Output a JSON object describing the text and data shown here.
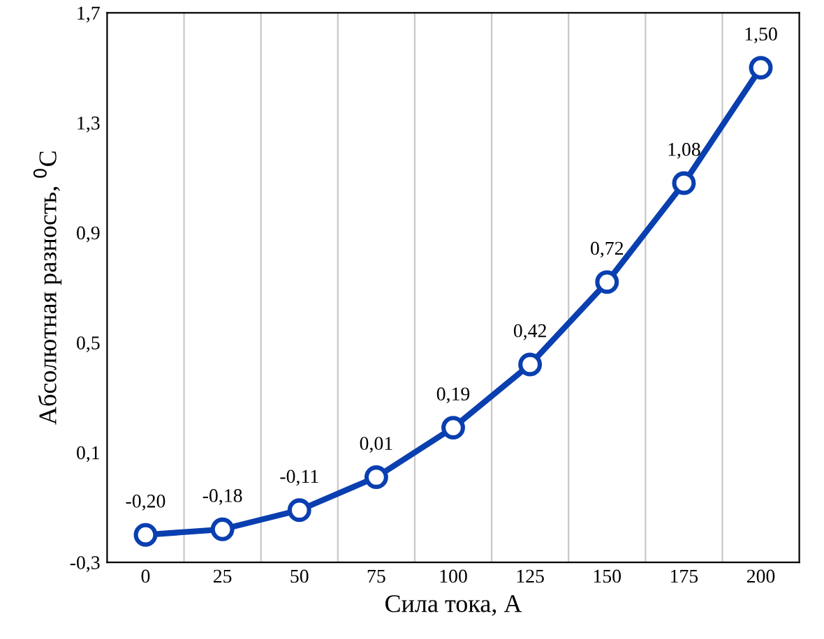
{
  "chart_data": {
    "type": "line",
    "xlabel": "Сила тока, А",
    "ylabel": "Абсолютная разность, $^{0}$C",
    "categories": [
      "0",
      "25",
      "50",
      "75",
      "100",
      "125",
      "150",
      "175",
      "200"
    ],
    "series": [
      {
        "color": "#0a3fb0",
        "values": [
          -0.2,
          -0.18,
          -0.11,
          0.01,
          0.19,
          0.42,
          0.72,
          1.08,
          1.5
        ],
        "value_labels": [
          "-0,20",
          "-0,18",
          "-0,11",
          "0,01",
          "0,19",
          "0,42",
          "0,72",
          "1,08",
          "1,50"
        ]
      }
    ],
    "ylim": [
      -0.3,
      1.7
    ],
    "yticks": [
      {
        "value": -0.3,
        "label": "-0,3"
      },
      {
        "value": 0.1,
        "label": "0,1"
      },
      {
        "value": 0.5,
        "label": "0,5"
      },
      {
        "value": 0.9,
        "label": "0,9"
      },
      {
        "value": 1.3,
        "label": "1,3"
      },
      {
        "value": 1.7,
        "label": "1,7"
      }
    ],
    "grid": "x",
    "marker": "circle",
    "line_style": "solid",
    "legend": false
  }
}
